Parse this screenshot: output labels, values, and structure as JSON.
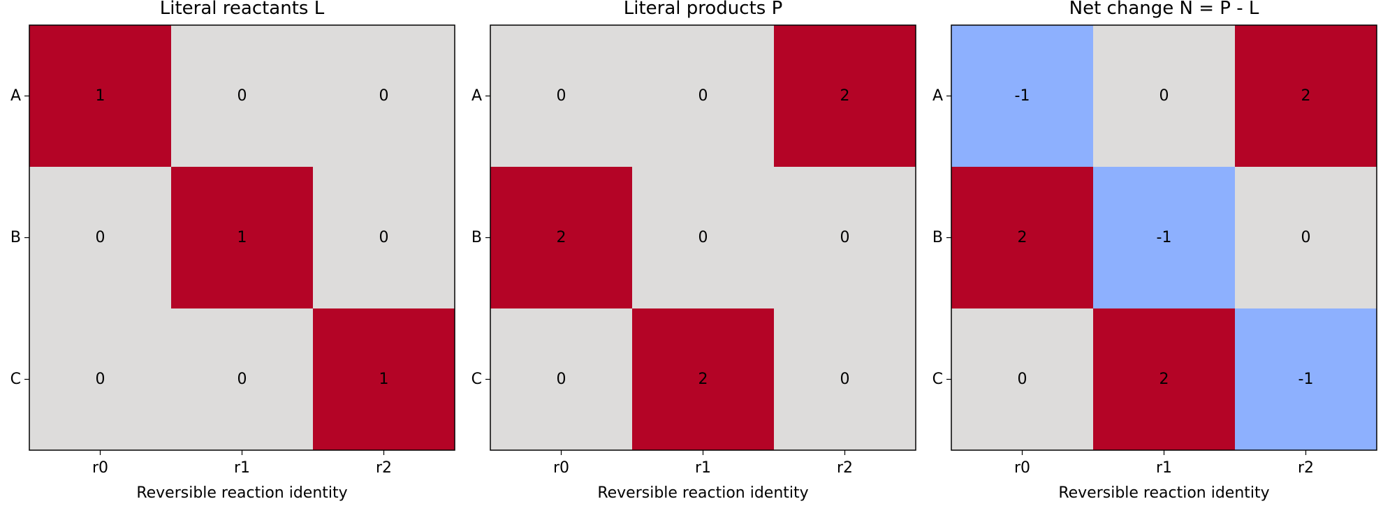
{
  "colors": {
    "positive": "#b40426",
    "zero": "#dddcdb",
    "negative": "#8db0fe"
  },
  "chart_data": [
    {
      "type": "heatmap",
      "title": "Literal reactants L",
      "xlabel": "Reversible reaction identity",
      "ylabel": "",
      "x_categories": [
        "r0",
        "r1",
        "r2"
      ],
      "y_categories": [
        "A",
        "B",
        "C"
      ],
      "values": [
        [
          1,
          0,
          0
        ],
        [
          0,
          1,
          0
        ],
        [
          0,
          0,
          1
        ]
      ],
      "colorscale": "diverging (blue negative, grey zero, red positive)"
    },
    {
      "type": "heatmap",
      "title": "Literal products P",
      "xlabel": "Reversible reaction identity",
      "ylabel": "",
      "x_categories": [
        "r0",
        "r1",
        "r2"
      ],
      "y_categories": [
        "A",
        "B",
        "C"
      ],
      "values": [
        [
          0,
          0,
          2
        ],
        [
          2,
          0,
          0
        ],
        [
          0,
          2,
          0
        ]
      ],
      "colorscale": "diverging (blue negative, grey zero, red positive)"
    },
    {
      "type": "heatmap",
      "title": "Net change N = P - L",
      "xlabel": "Reversible reaction identity",
      "ylabel": "",
      "x_categories": [
        "r0",
        "r1",
        "r2"
      ],
      "y_categories": [
        "A",
        "B",
        "C"
      ],
      "values": [
        [
          -1,
          0,
          2
        ],
        [
          2,
          -1,
          0
        ],
        [
          0,
          2,
          -1
        ]
      ],
      "colorscale": "diverging (blue negative, grey zero, red positive)"
    }
  ]
}
